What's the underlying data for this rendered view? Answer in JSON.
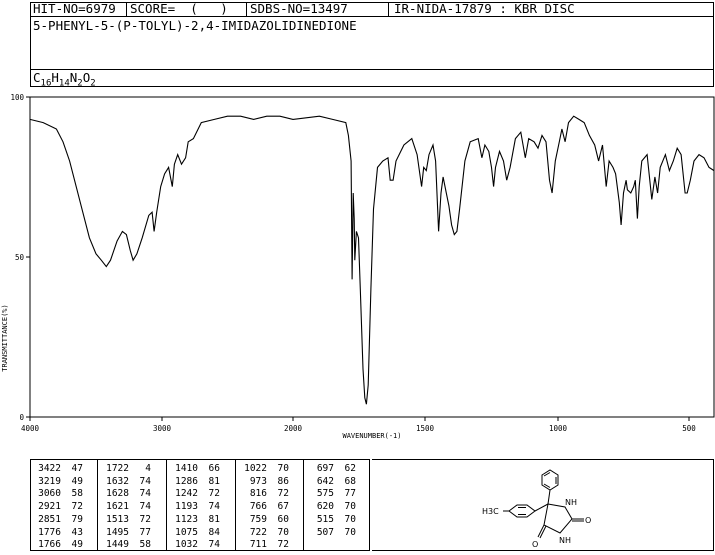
{
  "header": {
    "hit_no": "HIT-NO=6979",
    "score": "SCORE=  (   )",
    "sdbs_no": "SDBS-NO=13497",
    "ir_id": "IR-NIDA-17879 : KBR DISC",
    "compound": "5-PHENYL-5-(P-TOLYL)-2,4-IMIDAZOLIDINEDIONE",
    "formula": {
      "c": "C",
      "c_n": "16",
      "h": "H",
      "h_n": "14",
      "n": "N",
      "n_n": "2",
      "o": "O",
      "o_n": "2"
    }
  },
  "chart_data": {
    "type": "line",
    "xlabel": "WAVENUMBER(-1)",
    "ylabel": "TRANSMITTANCE(%)",
    "xlim": [
      4000,
      400
    ],
    "ylim": [
      0,
      100
    ],
    "x_ticks": [
      4000,
      3000,
      2000,
      1500,
      1000,
      500
    ],
    "y_ticks": [
      0,
      50,
      100
    ],
    "x_tick_labels": [
      "4000",
      "3000",
      "2000",
      "1500",
      "1000",
      "500"
    ],
    "y_tick_labels": [
      "0",
      "50",
      "100"
    ],
    "series": [
      {
        "points": [
          [
            4000,
            93
          ],
          [
            3900,
            92
          ],
          [
            3800,
            90
          ],
          [
            3750,
            86
          ],
          [
            3700,
            80
          ],
          [
            3650,
            72
          ],
          [
            3600,
            64
          ],
          [
            3550,
            56
          ],
          [
            3500,
            51
          ],
          [
            3460,
            49
          ],
          [
            3422,
            47
          ],
          [
            3390,
            49
          ],
          [
            3340,
            55
          ],
          [
            3300,
            58
          ],
          [
            3270,
            57
          ],
          [
            3240,
            52
          ],
          [
            3219,
            49
          ],
          [
            3190,
            51
          ],
          [
            3150,
            56
          ],
          [
            3100,
            63
          ],
          [
            3075,
            64
          ],
          [
            3060,
            58
          ],
          [
            3040,
            64
          ],
          [
            3010,
            72
          ],
          [
            2980,
            76
          ],
          [
            2950,
            78
          ],
          [
            2921,
            72
          ],
          [
            2905,
            79
          ],
          [
            2880,
            82
          ],
          [
            2851,
            79
          ],
          [
            2820,
            81
          ],
          [
            2800,
            86
          ],
          [
            2760,
            87
          ],
          [
            2700,
            92
          ],
          [
            2600,
            93
          ],
          [
            2500,
            94
          ],
          [
            2400,
            94
          ],
          [
            2300,
            93
          ],
          [
            2200,
            94
          ],
          [
            2100,
            94
          ],
          [
            2000,
            93
          ],
          [
            1900,
            94
          ],
          [
            1850,
            93
          ],
          [
            1800,
            92
          ],
          [
            1790,
            88
          ],
          [
            1780,
            80
          ],
          [
            1776,
            43
          ],
          [
            1772,
            70
          ],
          [
            1768,
            62
          ],
          [
            1766,
            49
          ],
          [
            1760,
            58
          ],
          [
            1752,
            56
          ],
          [
            1745,
            40
          ],
          [
            1735,
            15
          ],
          [
            1728,
            6
          ],
          [
            1722,
            4
          ],
          [
            1715,
            10
          ],
          [
            1705,
            40
          ],
          [
            1695,
            65
          ],
          [
            1680,
            78
          ],
          [
            1660,
            80
          ],
          [
            1640,
            81
          ],
          [
            1632,
            74
          ],
          [
            1628,
            74
          ],
          [
            1621,
            74
          ],
          [
            1610,
            80
          ],
          [
            1580,
            85
          ],
          [
            1550,
            87
          ],
          [
            1530,
            82
          ],
          [
            1513,
            72
          ],
          [
            1505,
            78
          ],
          [
            1495,
            77
          ],
          [
            1485,
            82
          ],
          [
            1470,
            85
          ],
          [
            1460,
            80
          ],
          [
            1449,
            58
          ],
          [
            1440,
            70
          ],
          [
            1432,
            75
          ],
          [
            1420,
            70
          ],
          [
            1410,
            66
          ],
          [
            1400,
            60
          ],
          [
            1390,
            57
          ],
          [
            1380,
            58
          ],
          [
            1370,
            65
          ],
          [
            1350,
            80
          ],
          [
            1330,
            86
          ],
          [
            1300,
            87
          ],
          [
            1286,
            81
          ],
          [
            1275,
            85
          ],
          [
            1260,
            83
          ],
          [
            1250,
            78
          ],
          [
            1242,
            72
          ],
          [
            1235,
            78
          ],
          [
            1220,
            83
          ],
          [
            1205,
            80
          ],
          [
            1193,
            74
          ],
          [
            1180,
            78
          ],
          [
            1160,
            87
          ],
          [
            1140,
            89
          ],
          [
            1123,
            81
          ],
          [
            1110,
            87
          ],
          [
            1090,
            86
          ],
          [
            1075,
            84
          ],
          [
            1060,
            88
          ],
          [
            1045,
            86
          ],
          [
            1032,
            74
          ],
          [
            1022,
            70
          ],
          [
            1010,
            80
          ],
          [
            995,
            86
          ],
          [
            985,
            90
          ],
          [
            973,
            86
          ],
          [
            960,
            92
          ],
          [
            940,
            94
          ],
          [
            920,
            93
          ],
          [
            900,
            92
          ],
          [
            880,
            88
          ],
          [
            860,
            85
          ],
          [
            845,
            80
          ],
          [
            830,
            85
          ],
          [
            816,
            72
          ],
          [
            805,
            80
          ],
          [
            790,
            78
          ],
          [
            780,
            76
          ],
          [
            766,
            67
          ],
          [
            759,
            60
          ],
          [
            750,
            70
          ],
          [
            740,
            74
          ],
          [
            735,
            71
          ],
          [
            722,
            70
          ],
          [
            711,
            72
          ],
          [
            705,
            74
          ],
          [
            697,
            62
          ],
          [
            690,
            72
          ],
          [
            680,
            80
          ],
          [
            660,
            82
          ],
          [
            642,
            68
          ],
          [
            630,
            75
          ],
          [
            620,
            70
          ],
          [
            610,
            78
          ],
          [
            590,
            82
          ],
          [
            575,
            77
          ],
          [
            560,
            80
          ],
          [
            545,
            84
          ],
          [
            530,
            82
          ],
          [
            515,
            70
          ],
          [
            507,
            70
          ],
          [
            495,
            74
          ],
          [
            480,
            80
          ],
          [
            460,
            82
          ],
          [
            440,
            81
          ],
          [
            420,
            78
          ],
          [
            400,
            77
          ]
        ]
      }
    ]
  },
  "peaks": {
    "columns": [
      [
        [
          "3422",
          "47"
        ],
        [
          "3219",
          "49"
        ],
        [
          "3060",
          "58"
        ],
        [
          "2921",
          "72"
        ],
        [
          "2851",
          "79"
        ],
        [
          "1776",
          "43"
        ],
        [
          "1766",
          "49"
        ]
      ],
      [
        [
          "1722",
          "4"
        ],
        [
          "1632",
          "74"
        ],
        [
          "1628",
          "74"
        ],
        [
          "1621",
          "74"
        ],
        [
          "1513",
          "72"
        ],
        [
          "1495",
          "77"
        ],
        [
          "1449",
          "58"
        ]
      ],
      [
        [
          "1410",
          "66"
        ],
        [
          "1286",
          "81"
        ],
        [
          "1242",
          "72"
        ],
        [
          "1193",
          "74"
        ],
        [
          "1123",
          "81"
        ],
        [
          "1075",
          "84"
        ],
        [
          "1032",
          "74"
        ]
      ],
      [
        [
          "1022",
          "70"
        ],
        [
          "973",
          "86"
        ],
        [
          "816",
          "72"
        ],
        [
          "766",
          "67"
        ],
        [
          "759",
          "60"
        ],
        [
          "722",
          "70"
        ],
        [
          "711",
          "72"
        ]
      ],
      [
        [
          "697",
          "62"
        ],
        [
          "642",
          "68"
        ],
        [
          "575",
          "77"
        ],
        [
          "620",
          "70"
        ],
        [
          "515",
          "70"
        ],
        [
          "507",
          "70"
        ],
        [
          "",
          ""
        ]
      ]
    ]
  },
  "structure": {
    "methyl_label": "H3C",
    "nh_top": "N",
    "nh_top_h": "H",
    "nh_bottom": "NH",
    "o_right": "O",
    "o_left": "O"
  }
}
